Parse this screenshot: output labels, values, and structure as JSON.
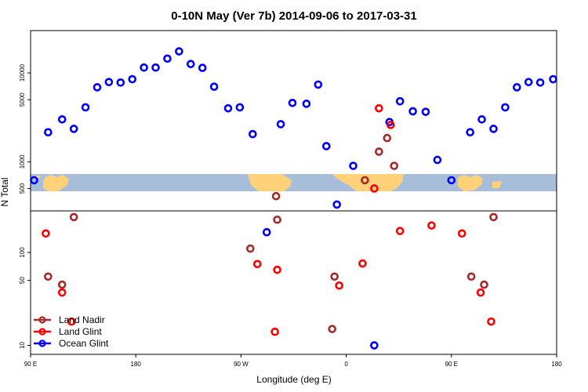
{
  "chart_data": {
    "type": "scatter",
    "title": "0-10N May (Ver 7b)   2014-09-06 to 2017-03-31",
    "xlabel": "Longitude (deg E)",
    "ylabel": "N Total",
    "x_ticks": [
      {
        "value": 90,
        "label": "90 E"
      },
      {
        "value": 180,
        "label": "180"
      },
      {
        "value": 270,
        "label": "90 W"
      },
      {
        "value": 360,
        "label": "0"
      },
      {
        "value": 450,
        "label": "90 E"
      },
      {
        "value": 540,
        "label": "180"
      }
    ],
    "xlim": [
      90,
      540
    ],
    "y_scale": "log",
    "y_ticks_upper": [
      {
        "value": 500,
        "label": "500"
      },
      {
        "value": 1000,
        "label": "1000"
      },
      {
        "value": 5000,
        "label": "5000"
      },
      {
        "value": 10000,
        "label": "10000"
      }
    ],
    "y_ticks_lower": [
      {
        "value": 10,
        "label": "10"
      },
      {
        "value": 50,
        "label": "50"
      },
      {
        "value": 100,
        "label": "100"
      }
    ],
    "ylim_upper": [
      280,
      30000
    ],
    "ylim_lower": [
      8,
      280
    ],
    "legend_position": "bottom-left",
    "series": [
      {
        "name": "Ocean Glint",
        "color": "#0000ff",
        "points": [
          [
            93,
            620
          ],
          [
            105,
            2150
          ],
          [
            117,
            3000
          ],
          [
            127,
            2350
          ],
          [
            137,
            4100
          ],
          [
            147,
            6900
          ],
          [
            157,
            7900
          ],
          [
            167,
            7800
          ],
          [
            177,
            8500
          ],
          [
            187,
            11500
          ],
          [
            197,
            11500
          ],
          [
            207,
            14500
          ],
          [
            217,
            17500
          ],
          [
            227,
            12600
          ],
          [
            237,
            11400
          ],
          [
            247,
            7000
          ],
          [
            259,
            4000
          ],
          [
            269,
            4100
          ],
          [
            280,
            2050
          ],
          [
            292,
            165
          ],
          [
            304,
            2650
          ],
          [
            314,
            4600
          ],
          [
            326,
            4500
          ],
          [
            336,
            7400
          ],
          [
            343,
            1500
          ],
          [
            352,
            330
          ],
          [
            366,
            900
          ],
          [
            384,
            10
          ],
          [
            397,
            2800
          ],
          [
            406,
            4800
          ],
          [
            417,
            3700
          ],
          [
            428,
            3650
          ],
          [
            438,
            1050
          ],
          [
            450,
            620
          ],
          [
            466,
            2150
          ],
          [
            476,
            3000
          ],
          [
            486,
            2350
          ],
          [
            496,
            4100
          ],
          [
            506,
            6900
          ],
          [
            516,
            7900
          ],
          [
            526,
            7800
          ],
          [
            537,
            8500
          ]
        ]
      },
      {
        "name": "Land Nadir",
        "color": "#a52a2a",
        "points": [
          [
            105,
            55
          ],
          [
            117,
            45
          ],
          [
            127,
            240
          ],
          [
            278,
            110
          ],
          [
            300,
            410
          ],
          [
            301,
            225
          ],
          [
            348,
            15
          ],
          [
            350,
            55
          ],
          [
            376,
            620
          ],
          [
            388,
            1300
          ],
          [
            395,
            1850
          ],
          [
            401,
            900
          ],
          [
            467,
            55
          ],
          [
            478,
            45
          ],
          [
            486,
            240
          ]
        ]
      },
      {
        "name": "Land Glint",
        "color": "#ff0000",
        "points": [
          [
            103,
            160
          ],
          [
            117,
            37
          ],
          [
            125,
            18
          ],
          [
            284,
            75
          ],
          [
            299,
            14
          ],
          [
            301,
            65
          ],
          [
            354,
            44
          ],
          [
            374,
            76
          ],
          [
            384,
            500
          ],
          [
            388,
            4000
          ],
          [
            398,
            2600
          ],
          [
            406,
            170
          ],
          [
            433,
            195
          ],
          [
            459,
            160
          ],
          [
            475,
            37
          ],
          [
            484,
            18
          ]
        ]
      }
    ]
  }
}
